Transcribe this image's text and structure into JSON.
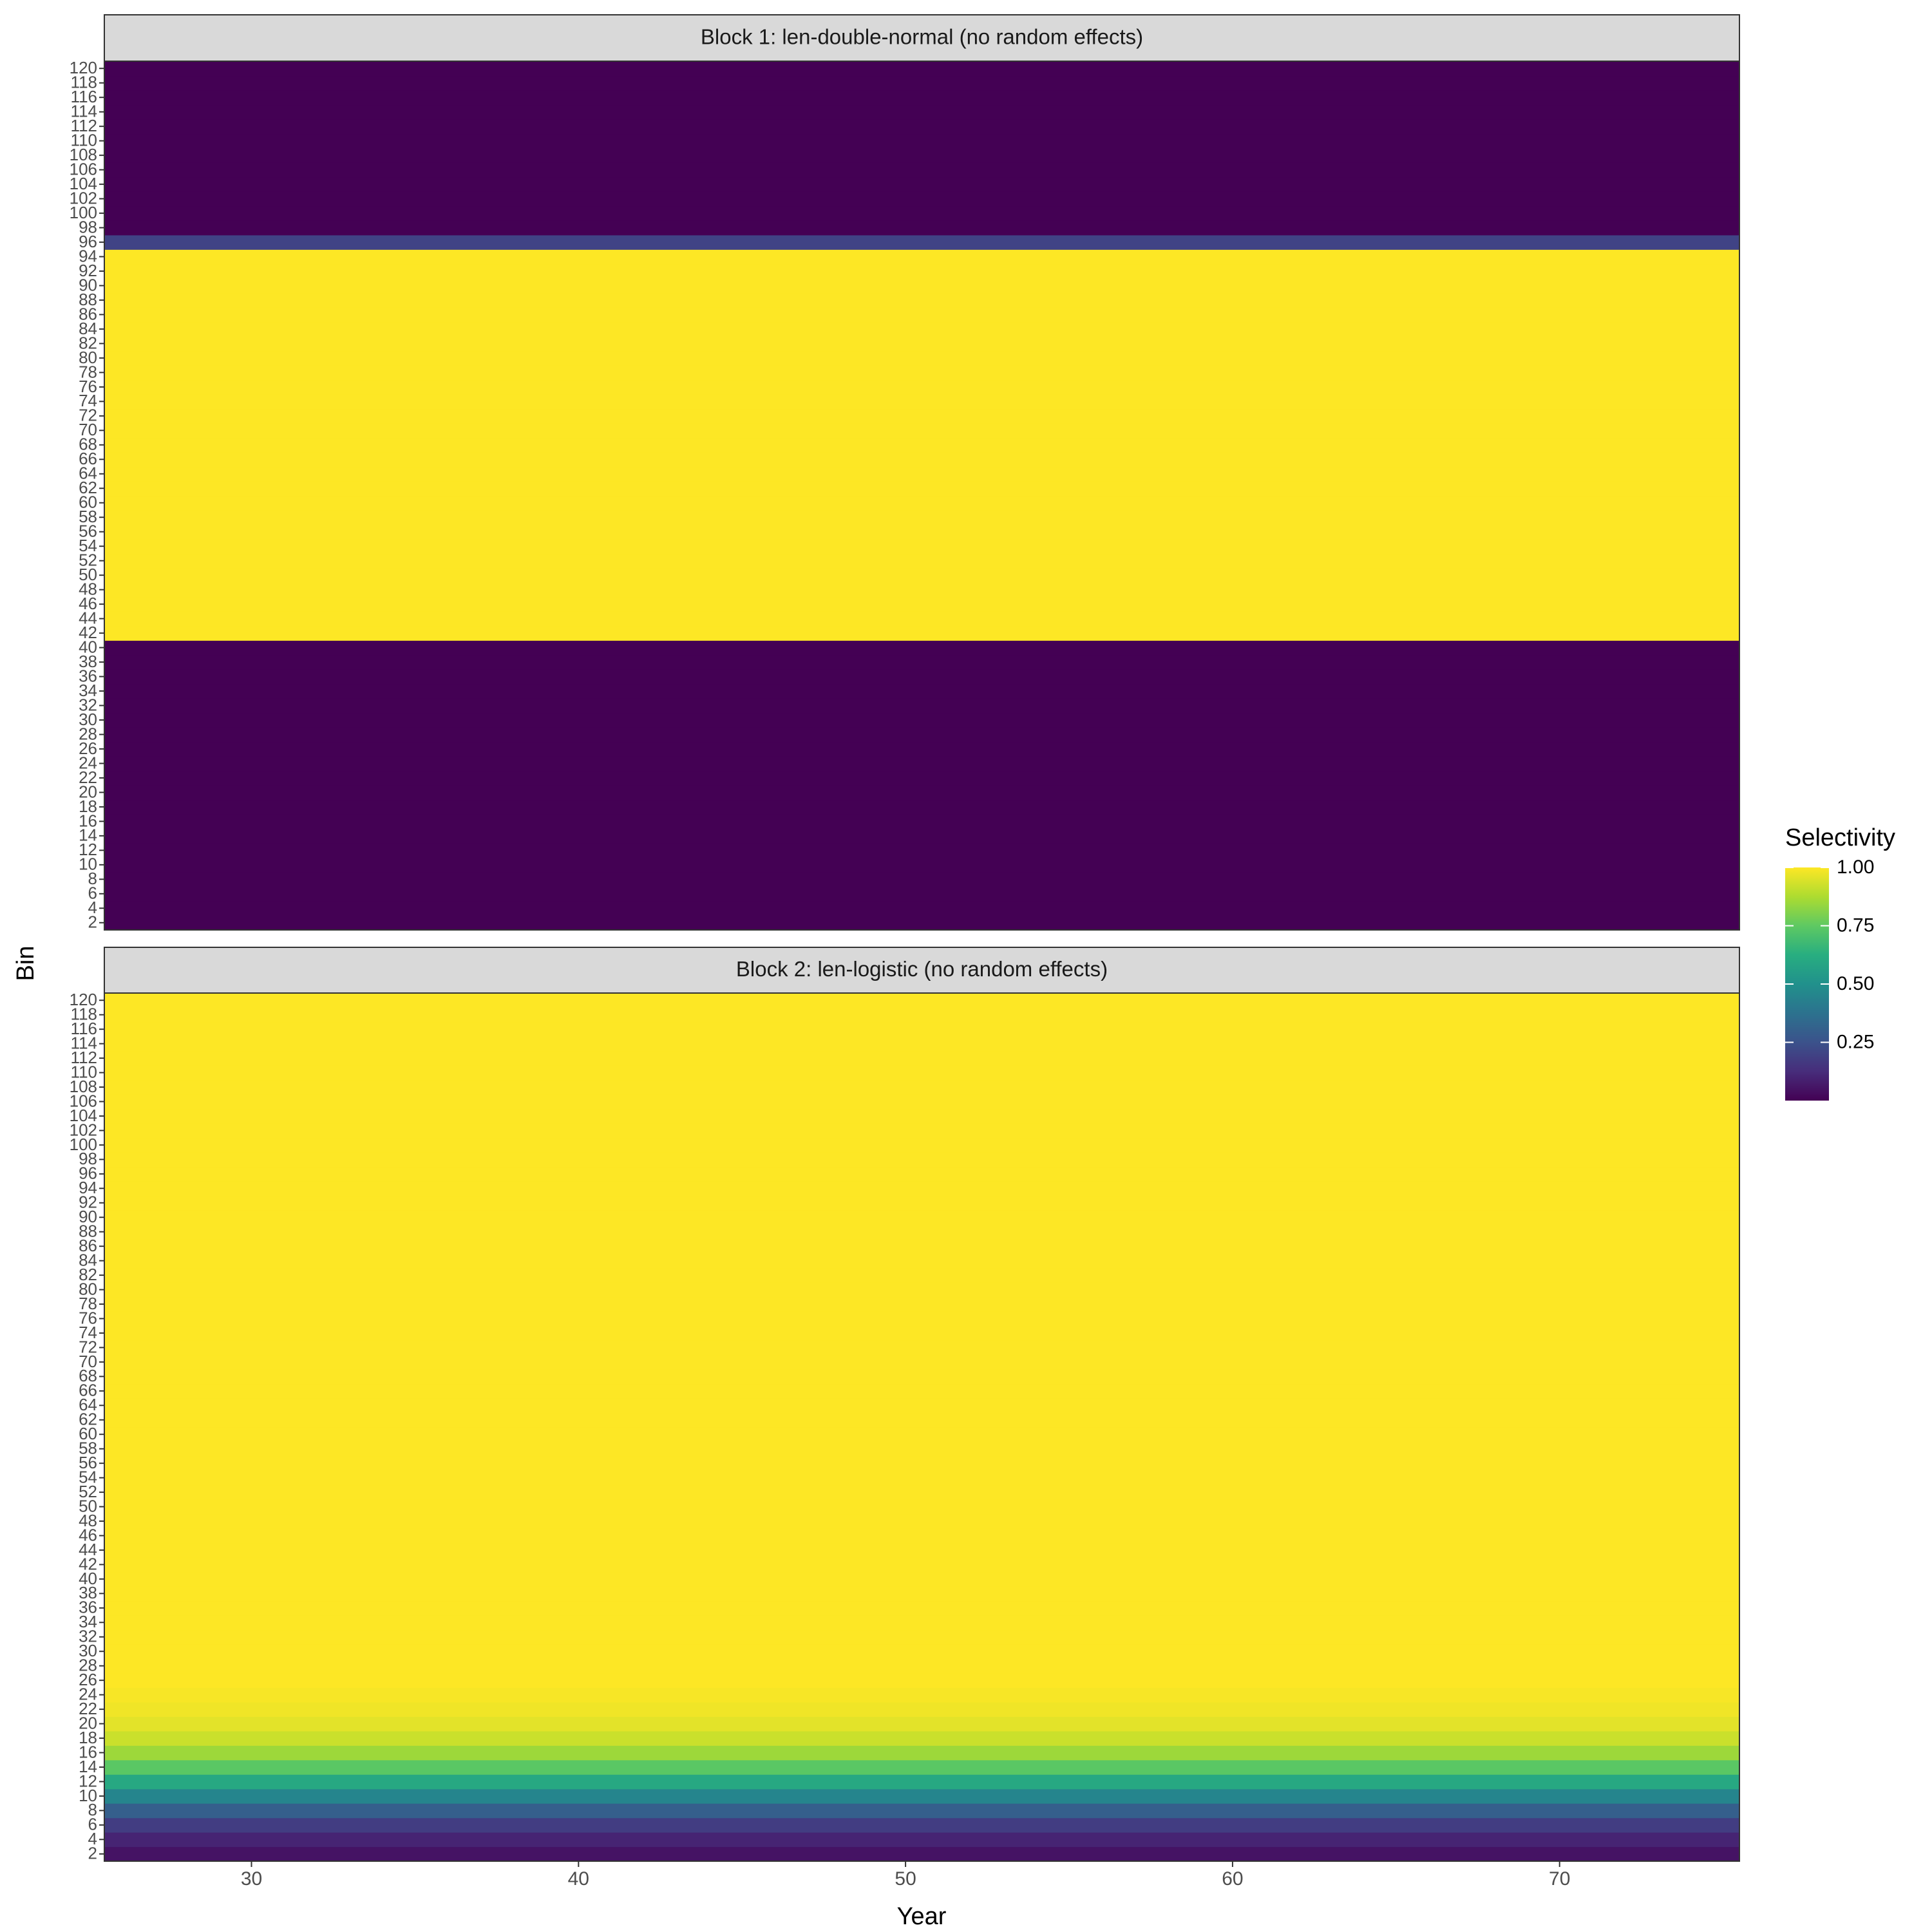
{
  "chart_data": {
    "type": "heatmap",
    "x_label": "Year",
    "y_label": "Bin",
    "xlim": [
      25.5,
      75.5
    ],
    "xticks": [
      30,
      40,
      50,
      60,
      70
    ],
    "bins": [
      2,
      4,
      6,
      8,
      10,
      12,
      14,
      16,
      18,
      20,
      22,
      24,
      26,
      28,
      30,
      32,
      34,
      36,
      38,
      40,
      42,
      44,
      46,
      48,
      50,
      52,
      54,
      56,
      58,
      60,
      62,
      64,
      66,
      68,
      70,
      72,
      74,
      76,
      78,
      80,
      82,
      84,
      86,
      88,
      90,
      92,
      94,
      96,
      98,
      100,
      102,
      104,
      106,
      108,
      110,
      112,
      114,
      116,
      118,
      120
    ],
    "colormap": "viridis",
    "legend": {
      "title": "Selectivity",
      "lim": [
        0,
        1
      ],
      "ticks": [
        {
          "value": 0.25,
          "label": "0.25"
        },
        {
          "value": 0.5,
          "label": "0.50"
        },
        {
          "value": 0.75,
          "label": "0.75"
        },
        {
          "value": 1,
          "label": "1.00"
        }
      ]
    },
    "panels": [
      {
        "title": "Block 1: len-double-normal (no random effects)",
        "values": [
          0,
          0,
          0,
          0,
          0,
          0,
          0,
          0,
          0,
          0,
          0,
          0,
          0,
          0,
          0,
          0,
          0,
          0,
          0,
          0,
          1,
          1,
          1,
          1,
          1,
          1,
          1,
          1,
          1,
          1,
          1,
          1,
          1,
          1,
          1,
          1,
          1,
          1,
          1,
          1,
          1,
          1,
          1,
          1,
          1,
          1,
          1,
          0.2,
          0,
          0,
          0,
          0,
          0,
          0,
          0,
          0,
          0,
          0,
          0,
          0
        ]
      },
      {
        "title": "Block 2: len-logistic (no random effects)",
        "values": [
          0.05,
          0.1,
          0.18,
          0.3,
          0.45,
          0.6,
          0.74,
          0.85,
          0.92,
          0.96,
          0.98,
          0.99,
          1,
          1,
          1,
          1,
          1,
          1,
          1,
          1,
          1,
          1,
          1,
          1,
          1,
          1,
          1,
          1,
          1,
          1,
          1,
          1,
          1,
          1,
          1,
          1,
          1,
          1,
          1,
          1,
          1,
          1,
          1,
          1,
          1,
          1,
          1,
          1,
          1,
          1,
          1,
          1,
          1,
          1,
          1,
          1,
          1,
          1,
          1,
          1
        ]
      }
    ]
  }
}
